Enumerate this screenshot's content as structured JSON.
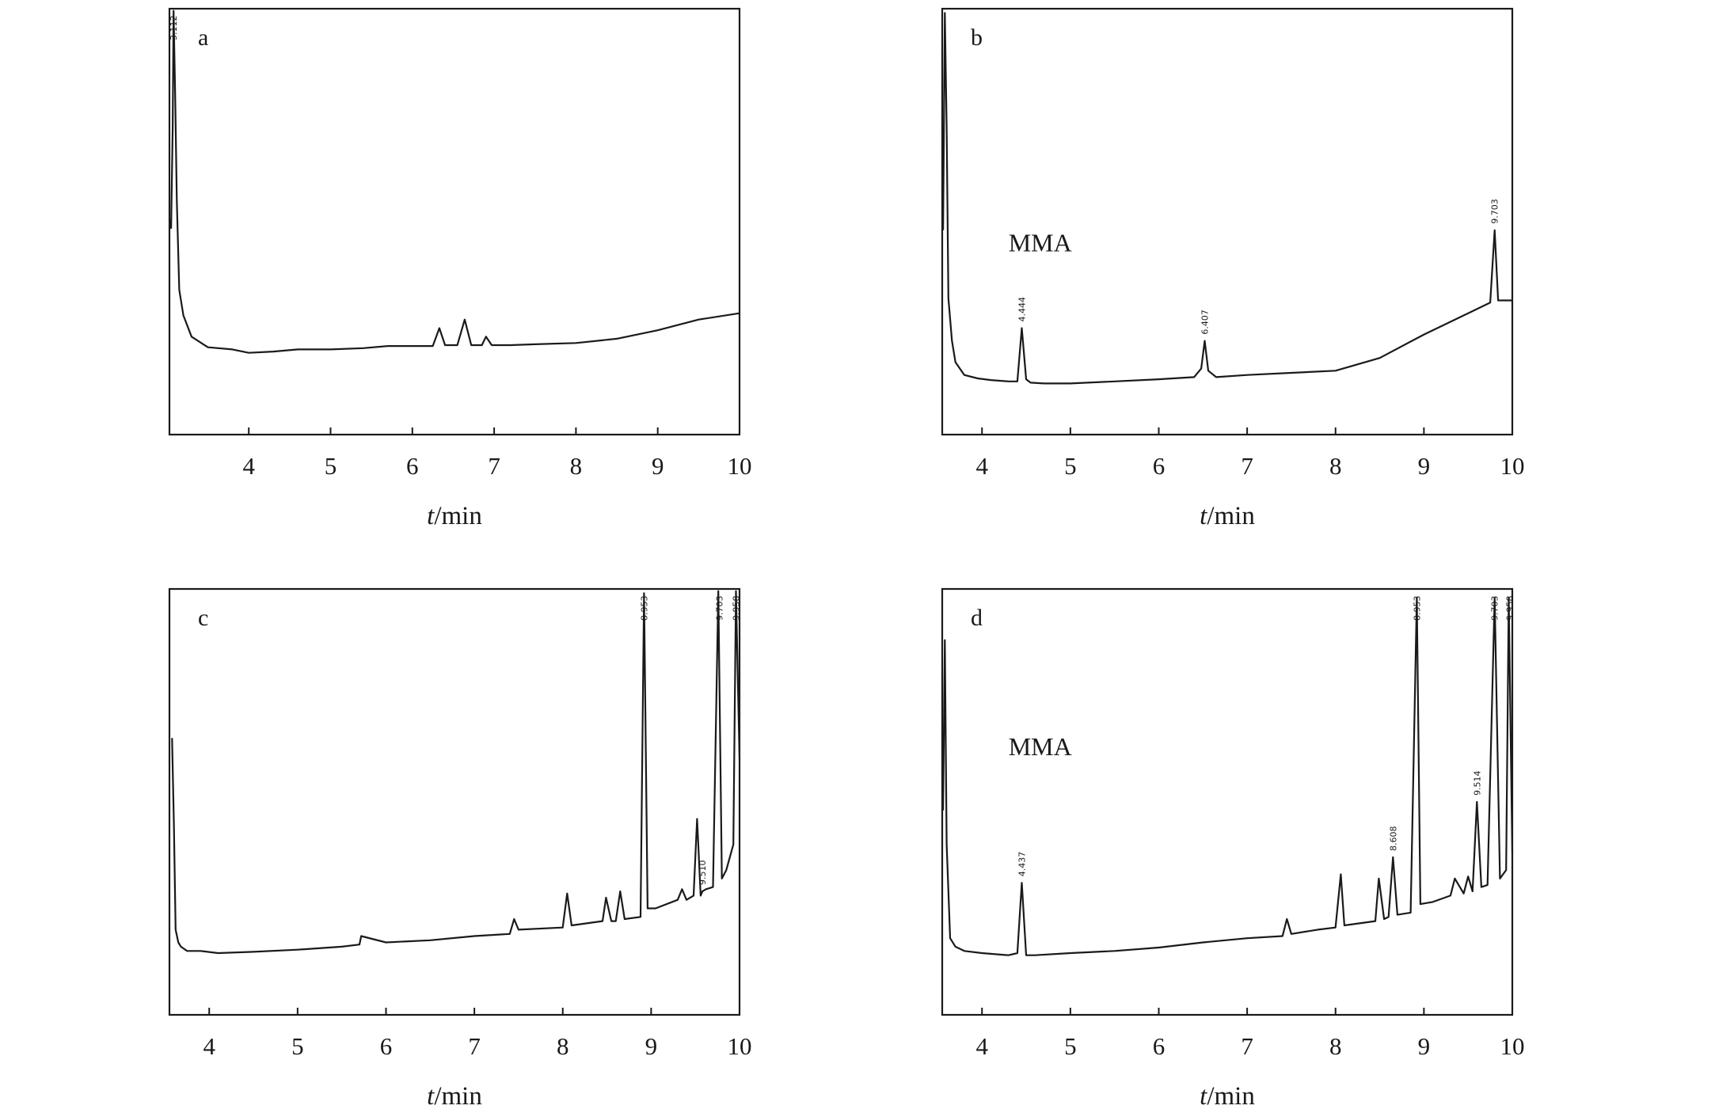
{
  "figure": {
    "colors": {
      "line": "#1a1a1a",
      "frame": "#1a1a1a",
      "background": "#ffffff"
    }
  },
  "chart_data": [
    {
      "type": "line",
      "panel": "a",
      "xlabel_italic": "t",
      "xlabel_rest": "/min",
      "ylabel": "",
      "xlim": [
        3.03,
        10.0
      ],
      "ylim": [
        0,
        100
      ],
      "xticks": [
        4,
        5,
        6,
        7,
        8,
        9,
        10
      ],
      "grid": false,
      "annotations": [],
      "peak_labels": [
        {
          "x": 3.08,
          "text": "3.112"
        }
      ],
      "series": [
        {
          "x": [
            3.03,
            3.05,
            3.07,
            3.08,
            3.1,
            3.12,
            3.15,
            3.2,
            3.3,
            3.5,
            3.8,
            4.0,
            4.3,
            4.6,
            5.0,
            5.4,
            5.7,
            6.0,
            6.25,
            6.33,
            6.4,
            6.55,
            6.64,
            6.72,
            6.85,
            6.9,
            6.97,
            7.2,
            7.5,
            8.0,
            8.5,
            9.0,
            9.5,
            10.0
          ],
          "y": [
            50.5,
            48.5,
            72.0,
            99.5,
            80.0,
            55.0,
            34.0,
            28.0,
            23.0,
            20.5,
            20.0,
            19.2,
            19.5,
            20.0,
            20.0,
            20.3,
            20.8,
            20.8,
            20.8,
            25.0,
            21.0,
            21.0,
            27.0,
            21.0,
            21.0,
            23.0,
            21.0,
            21.0,
            21.2,
            21.5,
            22.5,
            24.5,
            27.0,
            28.5
          ]
        }
      ]
    },
    {
      "type": "line",
      "panel": "b",
      "xlabel_italic": "t",
      "xlabel_rest": "/min",
      "ylabel": "",
      "xlim": [
        3.55,
        10.0
      ],
      "ylim": [
        0,
        100
      ],
      "xticks": [
        4,
        5,
        6,
        7,
        8,
        9,
        10
      ],
      "grid": false,
      "annotations": [
        {
          "x": 4.3,
          "y": 43,
          "text": "MMA"
        }
      ],
      "peak_labels": [
        {
          "x": 4.45,
          "text": "4.444"
        },
        {
          "x": 6.52,
          "text": "6.407"
        },
        {
          "x": 9.8,
          "text": "9.703"
        }
      ],
      "series": [
        {
          "x": [
            3.56,
            3.58,
            3.6,
            3.62,
            3.66,
            3.7,
            3.8,
            3.95,
            4.1,
            4.3,
            4.4,
            4.45,
            4.5,
            4.55,
            4.7,
            5.0,
            5.5,
            6.0,
            6.4,
            6.48,
            6.52,
            6.56,
            6.65,
            7.0,
            7.5,
            8.0,
            8.5,
            9.0,
            9.5,
            9.75,
            9.8,
            9.84,
            9.9,
            10.0
          ],
          "y": [
            48.0,
            99.0,
            72.0,
            32.0,
            22.0,
            17.0,
            14.0,
            13.2,
            12.8,
            12.5,
            12.5,
            25.0,
            13.0,
            12.2,
            12.0,
            12.0,
            12.5,
            13.0,
            13.5,
            15.5,
            22.0,
            15.0,
            13.5,
            14.0,
            14.5,
            15.0,
            18.0,
            23.5,
            28.5,
            31.0,
            48.0,
            31.5,
            31.5,
            31.5
          ]
        }
      ]
    },
    {
      "type": "line",
      "panel": "c",
      "xlabel_italic": "t",
      "xlabel_rest": "/min",
      "ylabel": "",
      "xlim": [
        3.55,
        10.0
      ],
      "ylim": [
        0,
        100
      ],
      "xticks": [
        4,
        5,
        6,
        7,
        8,
        9,
        10
      ],
      "grid": false,
      "annotations": [],
      "peak_labels": [
        {
          "x": 8.92,
          "text": "8.953"
        },
        {
          "x": 9.58,
          "text": "9.510"
        },
        {
          "x": 9.77,
          "text": "9.703"
        },
        {
          "x": 9.96,
          "text": "9.958"
        }
      ],
      "series": [
        {
          "x": [
            3.58,
            3.6,
            3.62,
            3.65,
            3.68,
            3.75,
            3.9,
            4.1,
            4.5,
            5.0,
            5.5,
            5.7,
            5.72,
            6.0,
            6.5,
            7.0,
            7.4,
            7.45,
            7.5,
            8.0,
            8.05,
            8.1,
            8.45,
            8.49,
            8.55,
            8.6,
            8.65,
            8.7,
            8.88,
            8.92,
            8.96,
            9.05,
            9.3,
            9.35,
            9.4,
            9.48,
            9.52,
            9.56,
            9.58,
            9.62,
            9.7,
            9.76,
            9.8,
            9.85,
            9.93,
            9.96,
            10.0
          ],
          "y": [
            65.0,
            45.0,
            20.0,
            17.0,
            16.0,
            15.0,
            15.0,
            14.5,
            14.8,
            15.3,
            16.0,
            16.5,
            18.5,
            17.0,
            17.5,
            18.5,
            19.0,
            22.5,
            20.0,
            20.5,
            28.5,
            21.0,
            22.0,
            27.5,
            22.0,
            22.0,
            29.0,
            22.5,
            23.0,
            99.0,
            25.0,
            25.0,
            27.0,
            29.5,
            27.0,
            28.0,
            46.0,
            28.0,
            29.0,
            29.5,
            30.0,
            99.5,
            32.0,
            34.0,
            40.0,
            99.5,
            60.0
          ]
        }
      ]
    },
    {
      "type": "line",
      "panel": "d",
      "xlabel_italic": "t",
      "xlabel_rest": "/min",
      "ylabel": "",
      "xlim": [
        3.55,
        10.0
      ],
      "ylim": [
        0,
        100
      ],
      "xticks": [
        4,
        5,
        6,
        7,
        8,
        9,
        10
      ],
      "grid": false,
      "annotations": [
        {
          "x": 4.3,
          "y": 61,
          "text": "MMA"
        }
      ],
      "peak_labels": [
        {
          "x": 4.45,
          "text": "4.437"
        },
        {
          "x": 8.65,
          "text": "8.608"
        },
        {
          "x": 8.92,
          "text": "8.953"
        },
        {
          "x": 9.6,
          "text": "9.514"
        },
        {
          "x": 9.8,
          "text": "9.703"
        },
        {
          "x": 9.97,
          "text": "9.958"
        }
      ],
      "series": [
        {
          "x": [
            3.56,
            3.58,
            3.6,
            3.64,
            3.7,
            3.8,
            4.0,
            4.3,
            4.4,
            4.45,
            4.5,
            4.6,
            5.0,
            5.5,
            6.0,
            6.5,
            7.0,
            7.4,
            7.45,
            7.5,
            7.8,
            8.0,
            8.06,
            8.1,
            8.45,
            8.49,
            8.55,
            8.6,
            8.65,
            8.7,
            8.85,
            8.92,
            8.96,
            9.1,
            9.3,
            9.35,
            9.45,
            9.5,
            9.55,
            9.6,
            9.65,
            9.72,
            9.8,
            9.86,
            9.93,
            9.96,
            10.0
          ],
          "y": [
            48.0,
            88.0,
            40.0,
            18.0,
            16.0,
            15.0,
            14.5,
            14.0,
            14.5,
            31.0,
            14.0,
            14.0,
            14.5,
            15.0,
            15.8,
            17.0,
            18.0,
            18.5,
            22.5,
            19.0,
            20.0,
            20.5,
            33.0,
            21.0,
            22.0,
            32.0,
            22.5,
            23.0,
            37.0,
            23.5,
            24.0,
            98.0,
            26.0,
            26.5,
            28.0,
            32.0,
            28.5,
            32.5,
            29.0,
            50.0,
            30.0,
            30.5,
            98.0,
            32.0,
            34.0,
            98.0,
            38.0
          ]
        }
      ]
    }
  ]
}
